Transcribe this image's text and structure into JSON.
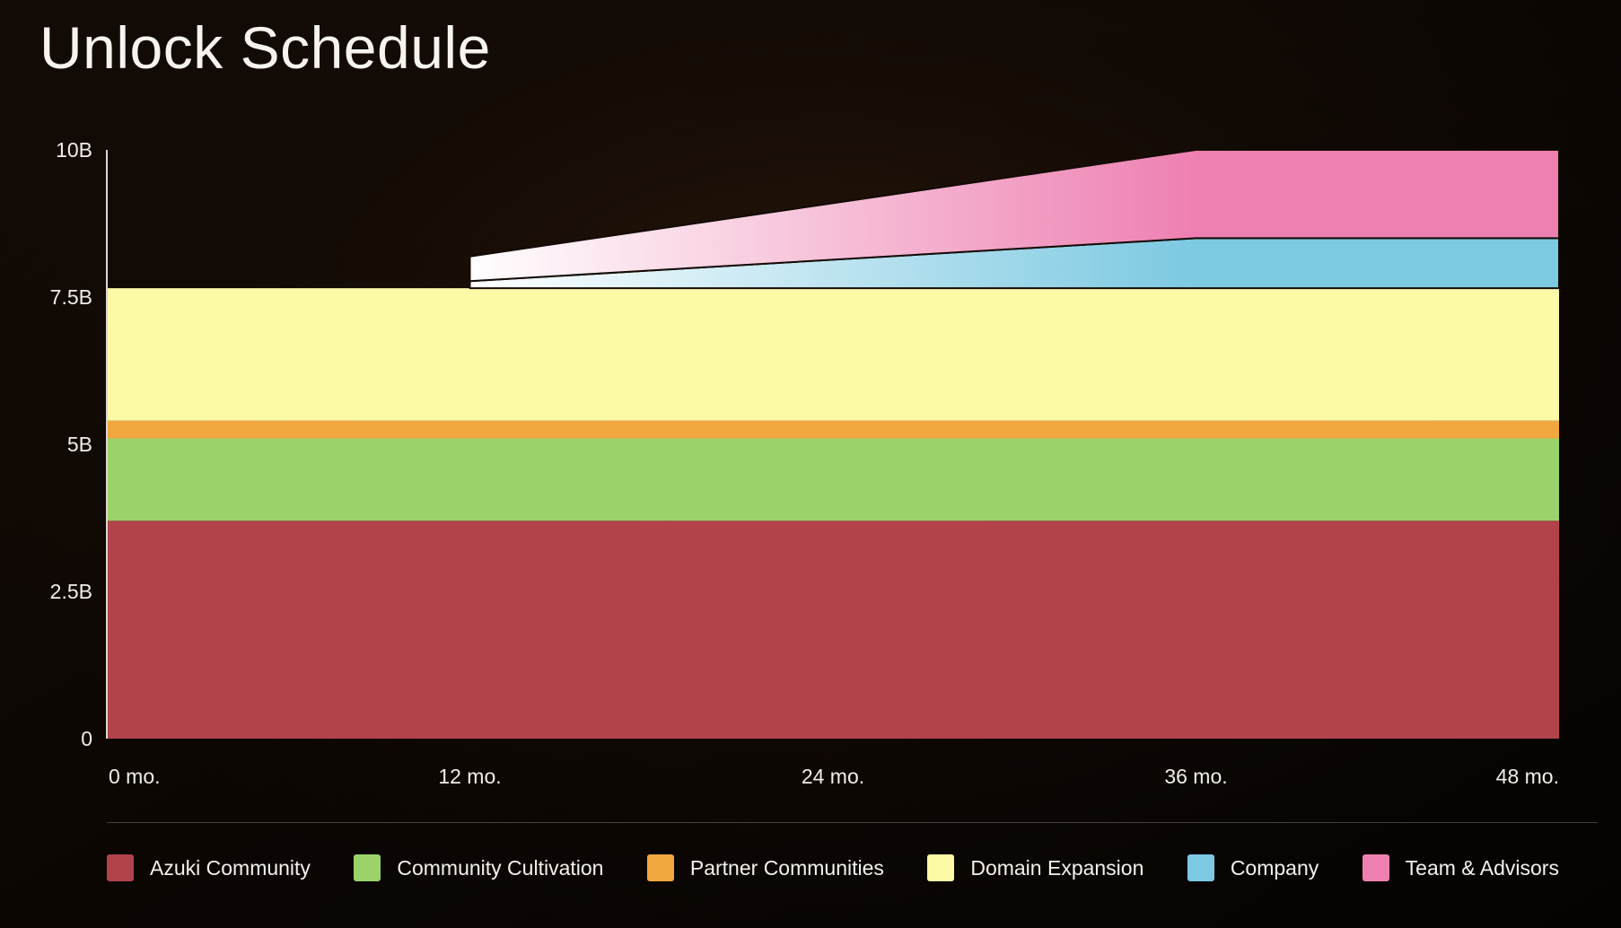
{
  "header": {
    "title": "Unlock Schedule"
  },
  "chart_data": {
    "type": "area",
    "stacked": true,
    "title": "Unlock Schedule",
    "grid": false,
    "legend_position": "bottom",
    "xlim_months": [
      0,
      48
    ],
    "ylim_billions": [
      0,
      10
    ],
    "x_breakpoints_months": [
      0,
      12,
      12,
      36,
      48
    ],
    "x_ticks": [
      {
        "value": 0,
        "label": "0 mo."
      },
      {
        "value": 12,
        "label": "12 mo."
      },
      {
        "value": 24,
        "label": "24 mo."
      },
      {
        "value": 36,
        "label": "36 mo."
      },
      {
        "value": 48,
        "label": "48 mo."
      }
    ],
    "y_ticks": [
      {
        "value": 0,
        "label": "0"
      },
      {
        "value": 2.5,
        "label": "2.5B"
      },
      {
        "value": 5,
        "label": "5B"
      },
      {
        "value": 7.5,
        "label": "7.5B"
      },
      {
        "value": 10,
        "label": "10B"
      }
    ],
    "series": [
      {
        "name": "Azuki Community",
        "color": "#b2434b",
        "values_billions": [
          3.7,
          3.7,
          3.7,
          3.7,
          3.7
        ]
      },
      {
        "name": "Community Cultivation",
        "color": "#9bd36a",
        "values_billions": [
          1.4,
          1.4,
          1.4,
          1.4,
          1.4
        ]
      },
      {
        "name": "Partner Communities",
        "color": "#f1a73f",
        "values_billions": [
          0.3,
          0.3,
          0.3,
          0.3,
          0.3
        ]
      },
      {
        "name": "Domain Expansion",
        "color": "#fcfaa6",
        "values_billions": [
          2.25,
          2.25,
          2.25,
          2.25,
          2.25
        ]
      },
      {
        "name": "Company",
        "color": "#7cc9e2",
        "ramp_gradient_from": "#ffffff",
        "values_billions": [
          0,
          0,
          0.12,
          0.85,
          0.85
        ]
      },
      {
        "name": "Team & Advisors",
        "color": "#ee80b1",
        "ramp_gradient_from": "#ffffff",
        "values_billions": [
          0,
          0,
          0.42,
          1.5,
          1.5
        ]
      }
    ]
  }
}
